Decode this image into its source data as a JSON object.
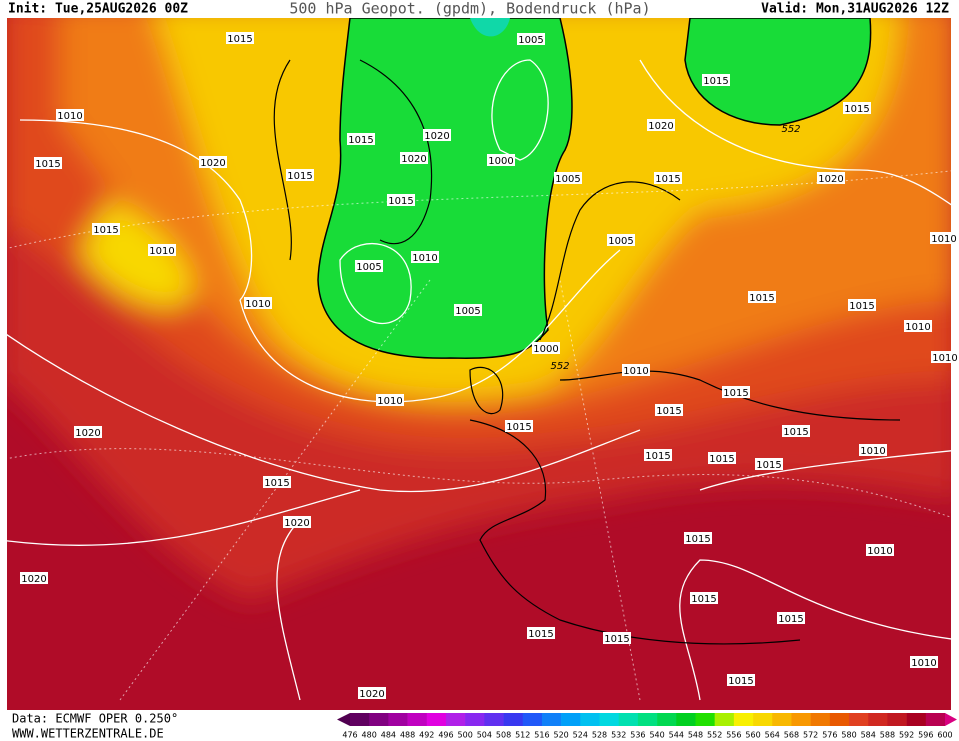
{
  "header": {
    "init": "Init: Tue,25AUG2026 00Z",
    "title": "500 hPa Geopot. (gpdm), Bodendruck (hPa)",
    "valid": "Valid: Mon,31AUG2026 12Z"
  },
  "footer": {
    "source": "Data: ECMWF OPER 0.250°",
    "website": "WWW.WETTERZENTRALE.DE"
  },
  "colorbar": {
    "labels": [
      476,
      480,
      484,
      488,
      492,
      496,
      500,
      504,
      508,
      512,
      516,
      520,
      524,
      528,
      532,
      536,
      540,
      544,
      548,
      552,
      556,
      560,
      564,
      568,
      572,
      576,
      580,
      584,
      588,
      592,
      596,
      600
    ],
    "colors": [
      "#500050",
      "#600060",
      "#800080",
      "#a000a0",
      "#c000c0",
      "#e000e0",
      "#b020e8",
      "#8828f0",
      "#6030f0",
      "#3838f0",
      "#2058f8",
      "#1080f8",
      "#00a0f8",
      "#00c0f0",
      "#00d8e0",
      "#00e0b0",
      "#00e080",
      "#00d850",
      "#00d020",
      "#20e000",
      "#a8f000",
      "#f8f000",
      "#f8d800",
      "#f8b800",
      "#f89800",
      "#f07800",
      "#e85800",
      "#e04020",
      "#d02820",
      "#c01820",
      "#a80020",
      "#b80050",
      "#d80080"
    ]
  },
  "contour_552_labels": [
    552,
    552
  ],
  "isobar_labels": [
    1015,
    1010,
    1015,
    1020,
    1015,
    1015,
    1010,
    1010,
    1005,
    1010,
    1015,
    1020,
    1020,
    1015,
    1005,
    1000,
    1005,
    1005,
    1000,
    1005,
    1015,
    1020,
    1015,
    1015,
    1020,
    1010,
    1015,
    1015,
    1010,
    1010,
    1010,
    1010,
    1020,
    1015,
    1015,
    1015,
    1015,
    1010,
    1015,
    1015,
    1015,
    1015,
    1020,
    1015,
    1010,
    1020,
    1015,
    1015,
    1015,
    1015,
    1010,
    1015,
    1020
  ]
}
